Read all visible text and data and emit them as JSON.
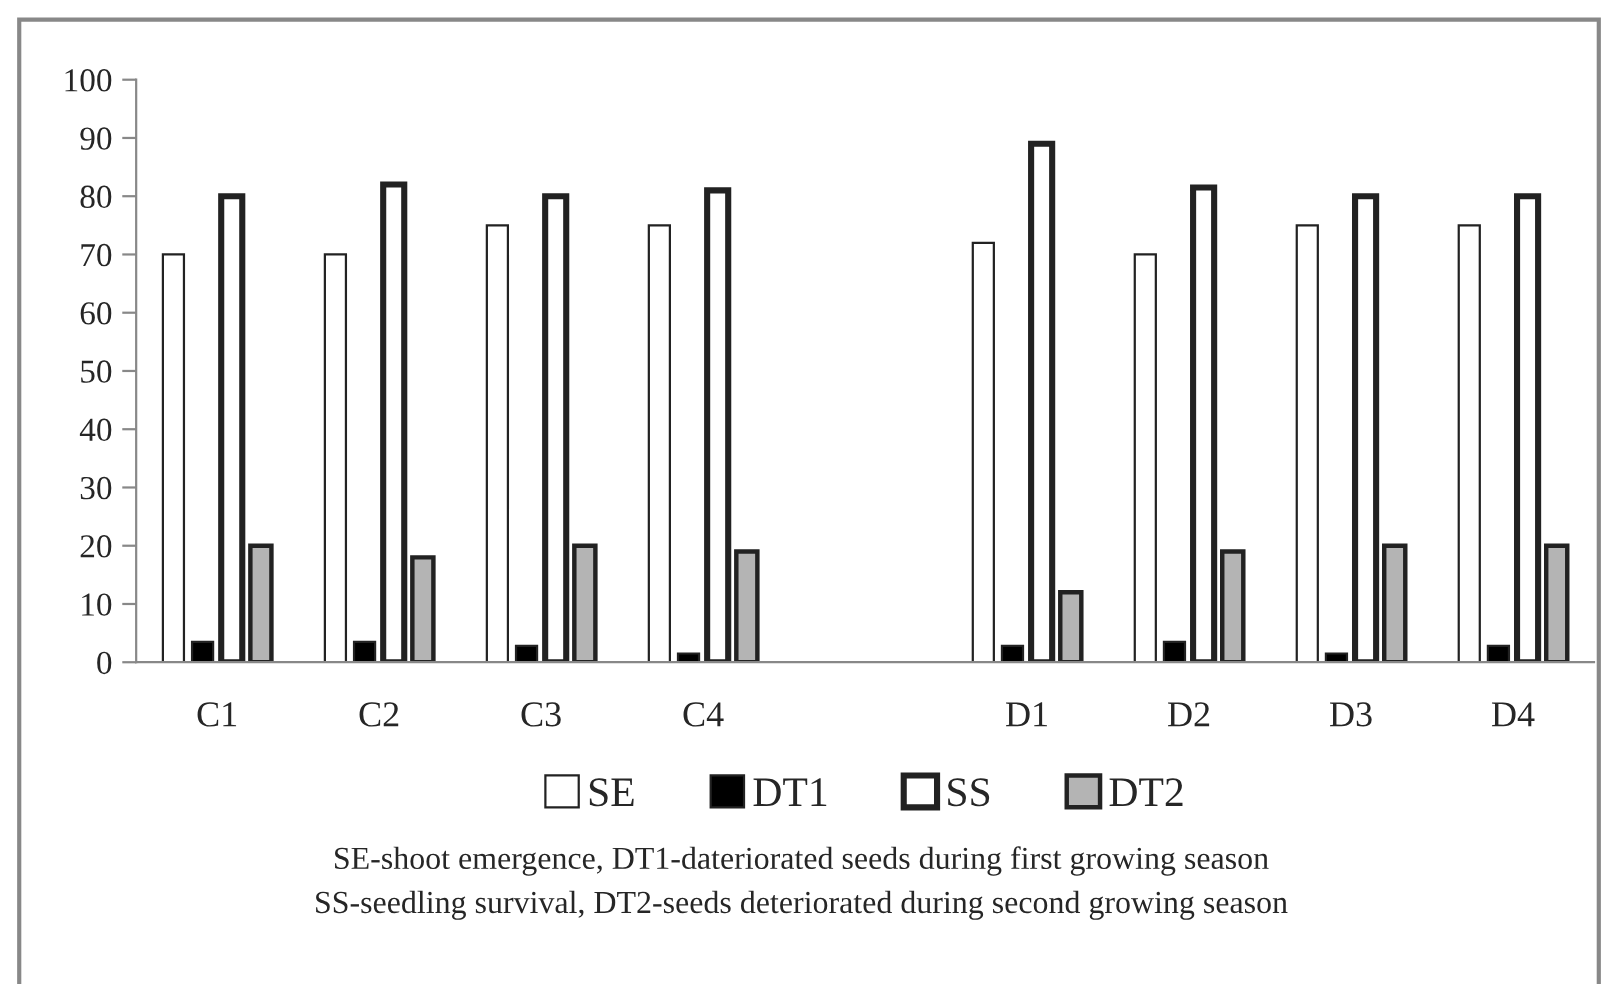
{
  "chart_data": {
    "type": "bar",
    "categories": [
      "C1",
      "C2",
      "C3",
      "C4",
      null,
      "D1",
      "D2",
      "D3",
      "D4"
    ],
    "series": [
      {
        "name": "SE",
        "color": "#ffffff",
        "values": [
          70,
          70,
          75,
          75,
          null,
          72,
          70,
          75,
          75
        ]
      },
      {
        "name": "DT1",
        "color": "#000000",
        "values": [
          3.5,
          3.5,
          2.8,
          1.5,
          null,
          2.8,
          3.5,
          1.5,
          2.8
        ]
      },
      {
        "name": "SS",
        "color": "#ffffff",
        "values": [
          80,
          82,
          80,
          81,
          null,
          89,
          81.5,
          80,
          80
        ]
      },
      {
        "name": "DT2",
        "color": "#b4b4b4",
        "values": [
          20,
          18,
          20,
          19,
          null,
          12,
          19,
          20,
          20
        ]
      }
    ],
    "ylim": [
      0,
      100
    ],
    "yticks": [
      0,
      10,
      20,
      30,
      40,
      50,
      60,
      70,
      80,
      90,
      100
    ],
    "grid": false,
    "legend": "bottom",
    "annotations": [
      "SE-shoot emergence, DT1-dateriorated seeds during first growing season",
      "SS-seedling survival, DT2-seeds deteriorated during second growing season"
    ]
  }
}
